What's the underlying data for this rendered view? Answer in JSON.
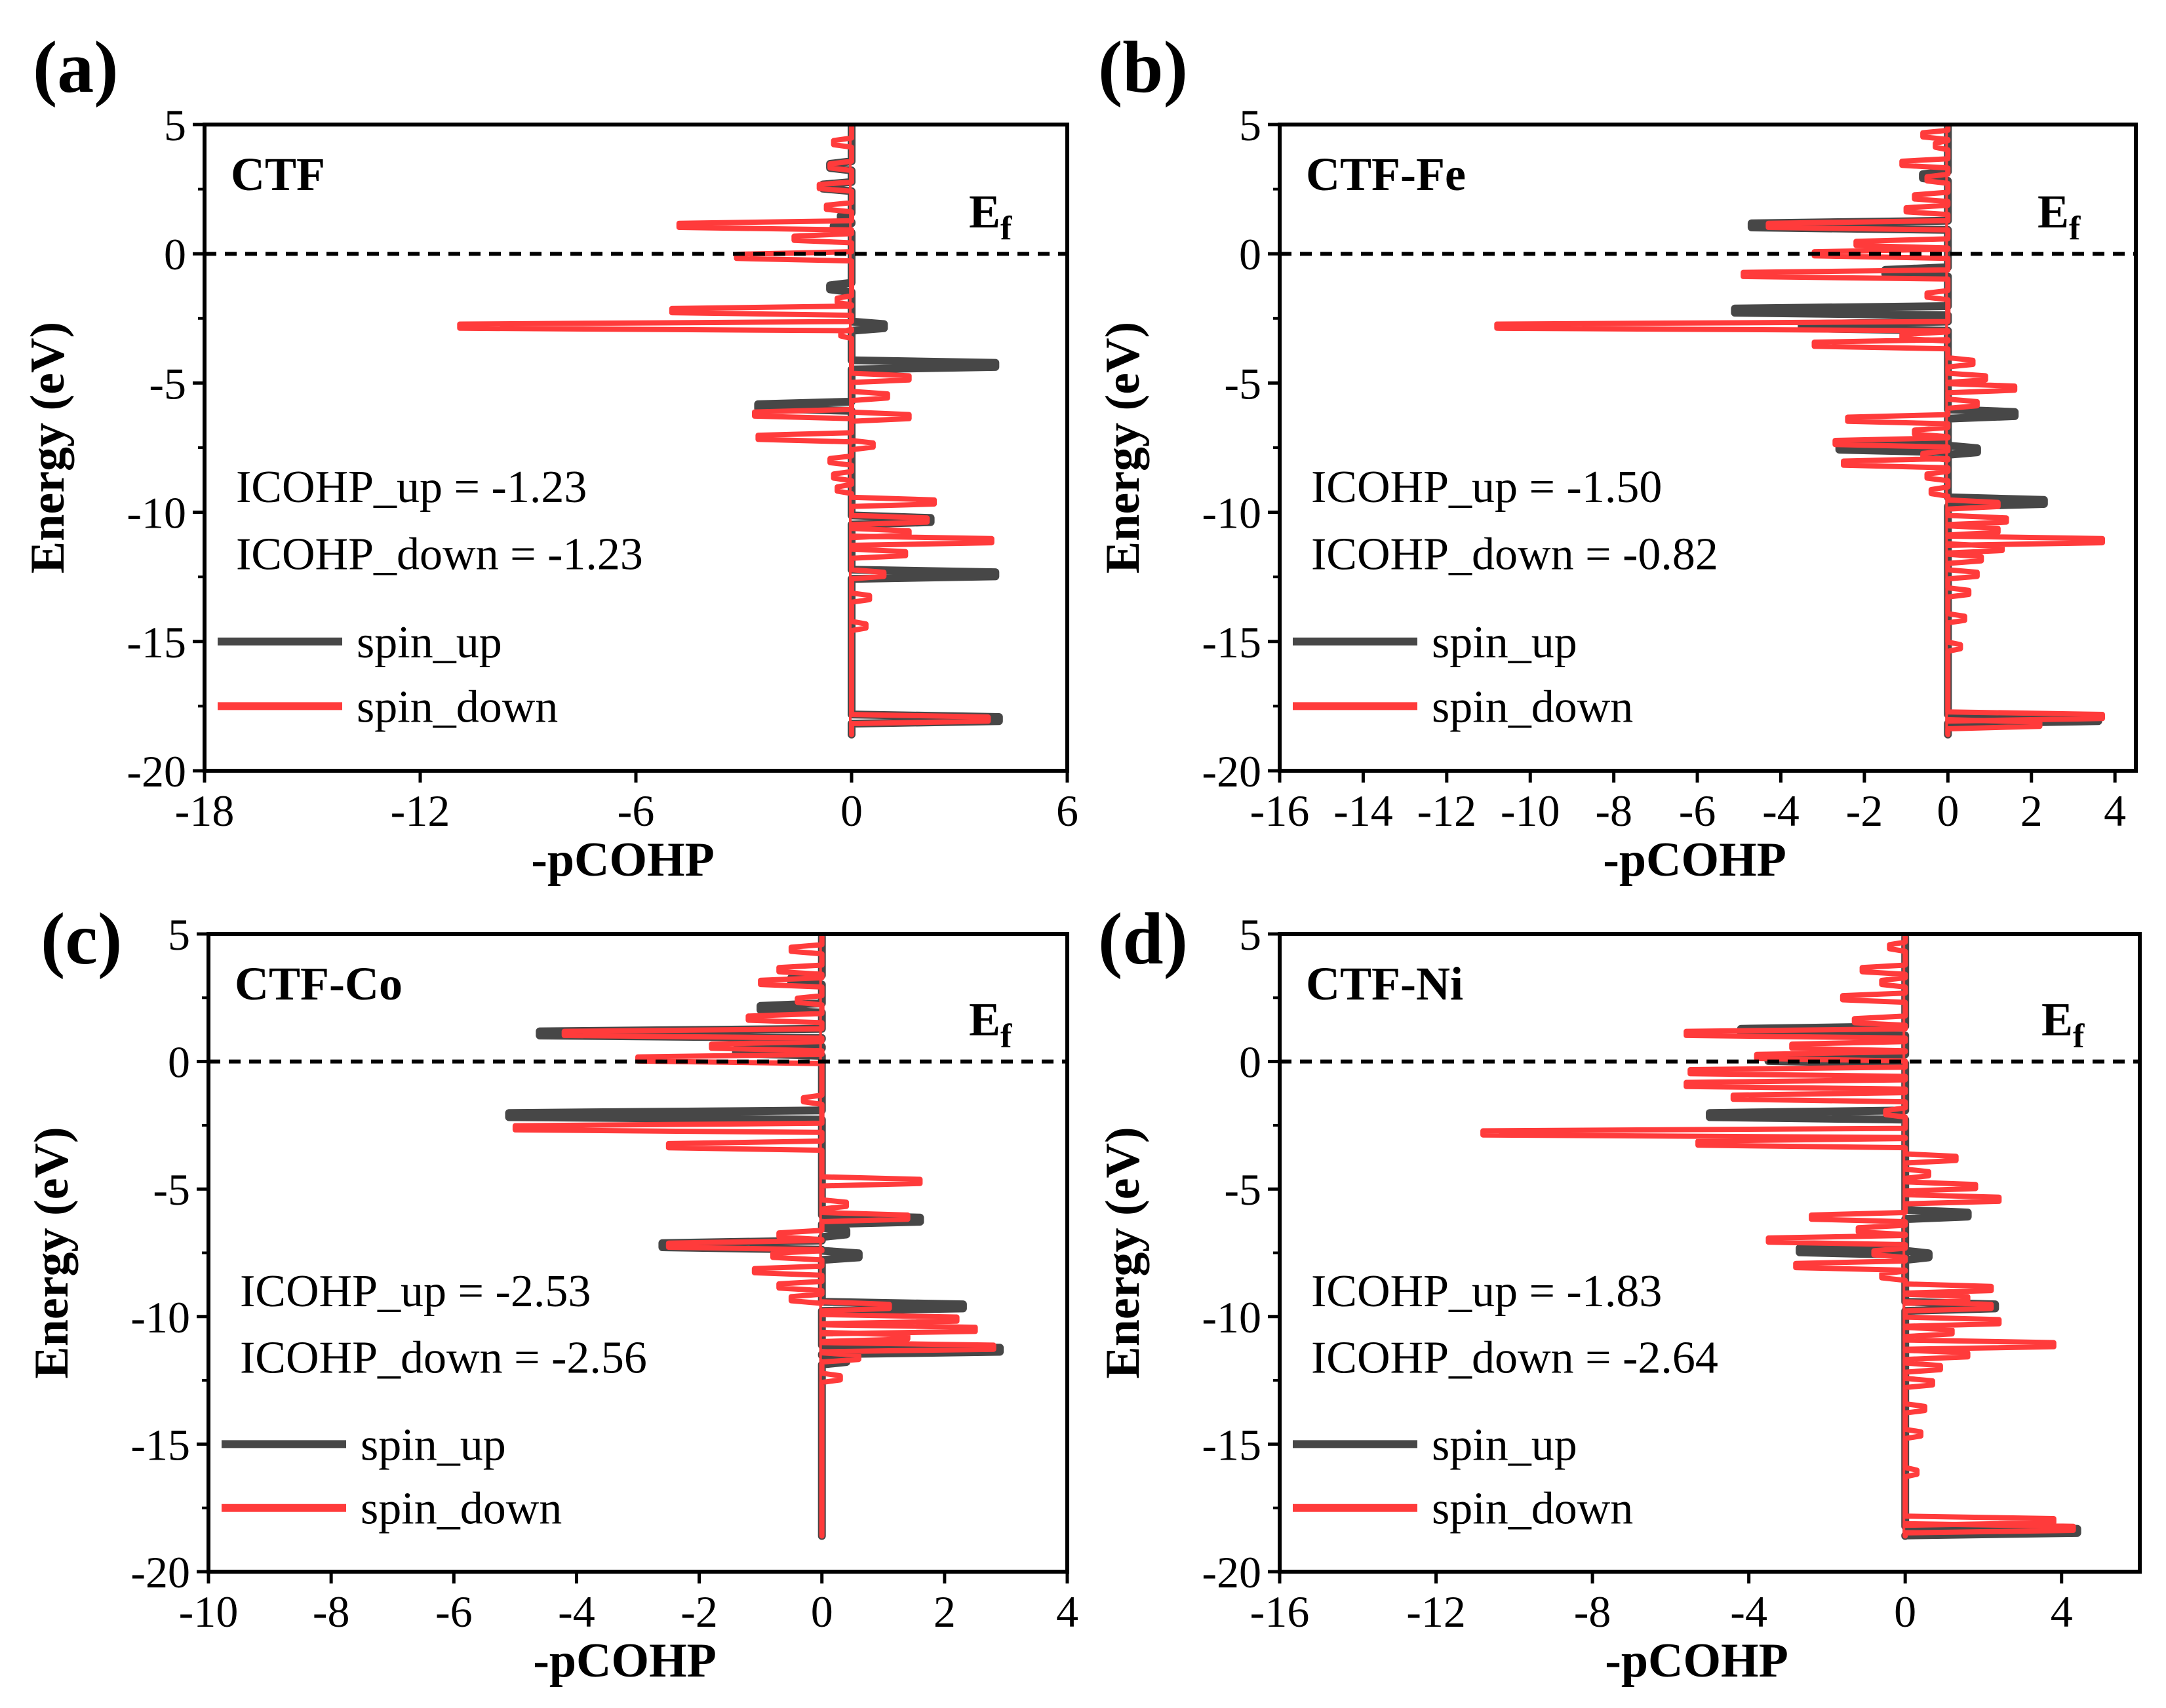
{
  "chart_data": [
    {
      "type": "line",
      "panel": "(a)",
      "title": "CTF",
      "xlabel": "-pCOHP",
      "ylabel": "Energy (eV)",
      "xlim": [
        -18,
        6
      ],
      "xticks": [
        -18,
        -12,
        -6,
        0,
        6
      ],
      "ylim": [
        -20,
        5
      ],
      "yticks": [
        5,
        0,
        -5,
        -10,
        -15,
        -20
      ],
      "fermi_label": "E",
      "fermi_sub": "f",
      "annotations": [
        "ICOHP_up = -1.23",
        "ICOHP_down = -1.23"
      ],
      "series": [
        {
          "name": "spin_up",
          "color": "#474747",
          "peaks": [
            [
              3.4,
              -0.6
            ],
            [
              2.6,
              -0.8
            ],
            [
              1.4,
              -0.3
            ],
            [
              1.0,
              -0.5
            ],
            [
              -1.3,
              -0.6
            ],
            [
              -2.8,
              0.9
            ],
            [
              -4.3,
              4.0
            ],
            [
              -5.9,
              -2.6
            ],
            [
              -10.3,
              2.2
            ],
            [
              -12.4,
              4.0
            ],
            [
              -18.0,
              4.1
            ]
          ]
        },
        {
          "name": "spin_down",
          "color": "#ff3b3b",
          "peaks": [
            [
              4.3,
              -0.5
            ],
            [
              3.4,
              -0.6
            ],
            [
              2.6,
              -0.9
            ],
            [
              1.8,
              -0.7
            ],
            [
              1.1,
              -4.8
            ],
            [
              0.6,
              -1.6
            ],
            [
              -0.1,
              -3.2
            ],
            [
              -1.8,
              -0.4
            ],
            [
              -2.2,
              -5.0
            ],
            [
              -2.8,
              -10.9
            ],
            [
              -3.1,
              -0.3
            ],
            [
              -4.8,
              1.6
            ],
            [
              -5.5,
              1.0
            ],
            [
              -6.2,
              -2.7
            ],
            [
              -6.3,
              1.6
            ],
            [
              -7.1,
              -2.6
            ],
            [
              -7.4,
              0.6
            ],
            [
              -8.0,
              -0.6
            ],
            [
              -8.6,
              -0.5
            ],
            [
              -9.1,
              -0.4
            ],
            [
              -9.6,
              2.3
            ],
            [
              -10.3,
              2.1
            ],
            [
              -10.8,
              1.6
            ],
            [
              -11.1,
              3.9
            ],
            [
              -11.6,
              1.5
            ],
            [
              -12.4,
              0.9
            ],
            [
              -13.3,
              0.5
            ],
            [
              -14.4,
              0.4
            ],
            [
              -18.0,
              3.8
            ]
          ]
        }
      ]
    },
    {
      "type": "line",
      "panel": "(b)",
      "title": "CTF-Fe",
      "xlabel": "-pCOHP",
      "ylabel": "Energy (eV)",
      "xlim": [
        -16,
        4.5
      ],
      "xticks": [
        -16,
        -14,
        -12,
        -10,
        -8,
        -6,
        -4,
        -2,
        0,
        2,
        4
      ],
      "ylim": [
        -20,
        5
      ],
      "yticks": [
        5,
        0,
        -5,
        -10,
        -15,
        -20
      ],
      "fermi_label": "E",
      "fermi_sub": "f",
      "annotations": [
        "ICOHP_up = -1.50",
        "ICOHP_down = -0.82"
      ],
      "series": [
        {
          "name": "spin_up",
          "color": "#474747",
          "peaks": [
            [
              3.0,
              -0.6
            ],
            [
              1.1,
              -4.7
            ],
            [
              -0.7,
              -1.5
            ],
            [
              -2.2,
              -5.1
            ],
            [
              -2.8,
              -3.5
            ],
            [
              -6.2,
              1.6
            ],
            [
              -7.5,
              -2.6
            ],
            [
              -7.6,
              0.7
            ],
            [
              -9.6,
              2.3
            ],
            [
              -18.0,
              3.6
            ]
          ]
        },
        {
          "name": "spin_down",
          "color": "#ff3b3b",
          "peaks": [
            [
              4.6,
              -0.6
            ],
            [
              4.2,
              -0.3
            ],
            [
              3.5,
              -1.1
            ],
            [
              2.9,
              -0.5
            ],
            [
              2.2,
              -0.8
            ],
            [
              1.7,
              -1.0
            ],
            [
              1.1,
              -4.3
            ],
            [
              0.4,
              -2.2
            ],
            [
              0.0,
              -3.2
            ],
            [
              -0.8,
              -4.9
            ],
            [
              -1.6,
              -0.5
            ],
            [
              -2.8,
              -10.8
            ],
            [
              -3.2,
              -1.1
            ],
            [
              -3.5,
              -3.2
            ],
            [
              -4.2,
              0.6
            ],
            [
              -4.8,
              0.9
            ],
            [
              -5.2,
              1.6
            ],
            [
              -5.8,
              0.7
            ],
            [
              -6.4,
              -2.4
            ],
            [
              -6.9,
              -0.8
            ],
            [
              -7.3,
              -2.7
            ],
            [
              -7.8,
              -0.6
            ],
            [
              -8.1,
              -2.5
            ],
            [
              -8.6,
              -0.5
            ],
            [
              -9.2,
              -0.4
            ],
            [
              -9.7,
              1.2
            ],
            [
              -10.3,
              1.4
            ],
            [
              -10.7,
              1.2
            ],
            [
              -11.1,
              3.7
            ],
            [
              -11.4,
              1.3
            ],
            [
              -11.8,
              0.8
            ],
            [
              -12.4,
              0.7
            ],
            [
              -13.1,
              0.5
            ],
            [
              -14.1,
              0.4
            ],
            [
              -15.2,
              0.3
            ],
            [
              -17.9,
              3.7
            ],
            [
              -18.2,
              2.2
            ]
          ]
        }
      ]
    },
    {
      "type": "line",
      "panel": "(c)",
      "title": "CTF-Co",
      "xlabel": "-pCOHP",
      "ylabel": "Energy (eV)",
      "xlim": [
        -10,
        4
      ],
      "xticks": [
        -10,
        -8,
        -6,
        -4,
        -2,
        0,
        2,
        4
      ],
      "ylim": [
        -20,
        5
      ],
      "yticks": [
        5,
        0,
        -5,
        -10,
        -15,
        -20
      ],
      "fermi_label": "E",
      "fermi_sub": "f",
      "annotations": [
        "ICOHP_up = -2.53",
        "ICOHP_down = -2.56"
      ],
      "series": [
        {
          "name": "spin_up",
          "color": "#474747",
          "peaks": [
            [
              3.2,
              -0.5
            ],
            [
              2.1,
              -1.0
            ],
            [
              1.1,
              -4.6
            ],
            [
              0.7,
              -1.2
            ],
            [
              0.4,
              -1.4
            ],
            [
              -2.1,
              -5.1
            ],
            [
              -6.2,
              1.6
            ],
            [
              -6.7,
              0.4
            ],
            [
              -7.2,
              -2.6
            ],
            [
              -7.6,
              0.6
            ],
            [
              -9.6,
              2.3
            ],
            [
              -11.3,
              2.9
            ],
            [
              -11.7,
              0.4
            ]
          ]
        },
        {
          "name": "spin_down",
          "color": "#ff3b3b",
          "peaks": [
            [
              4.4,
              -0.5
            ],
            [
              3.6,
              -0.7
            ],
            [
              3.1,
              -1.0
            ],
            [
              2.4,
              -0.4
            ],
            [
              1.7,
              -1.2
            ],
            [
              1.1,
              -4.2
            ],
            [
              0.6,
              -1.8
            ],
            [
              0.1,
              -3.0
            ],
            [
              -1.5,
              -0.3
            ],
            [
              -2.6,
              -5.0
            ],
            [
              -3.3,
              -2.5
            ],
            [
              -4.7,
              1.6
            ],
            [
              -5.6,
              0.4
            ],
            [
              -6.1,
              1.4
            ],
            [
              -6.8,
              -0.7
            ],
            [
              -7.2,
              -2.5
            ],
            [
              -7.6,
              -0.8
            ],
            [
              -8.2,
              -1.1
            ],
            [
              -8.8,
              -0.7
            ],
            [
              -9.3,
              -0.5
            ],
            [
              -9.6,
              1.1
            ],
            [
              -10.1,
              2.2
            ],
            [
              -10.5,
              2.5
            ],
            [
              -10.8,
              1.4
            ],
            [
              -11.2,
              2.8
            ],
            [
              -11.6,
              0.6
            ],
            [
              -12.4,
              0.3
            ]
          ]
        }
      ]
    },
    {
      "type": "line",
      "panel": "(d)",
      "title": "CTF-Ni",
      "xlabel": "-pCOHP",
      "ylabel": "Energy (eV)",
      "xlim": [
        -16,
        6
      ],
      "xticks": [
        -16,
        -12,
        -8,
        -4,
        0,
        4
      ],
      "ylim": [
        -20,
        5
      ],
      "yticks": [
        5,
        0,
        -5,
        -10,
        -15,
        -20
      ],
      "fermi_label": "E",
      "fermi_sub": "f",
      "annotations": [
        "ICOHP_up = -1.83",
        "ICOHP_down = -2.64"
      ],
      "series": [
        {
          "name": "spin_up",
          "color": "#474747",
          "peaks": [
            [
              1.2,
              -4.2
            ],
            [
              0.1,
              -3.5
            ],
            [
              -2.1,
              -5.0
            ],
            [
              -6.0,
              1.6
            ],
            [
              -7.4,
              -2.7
            ],
            [
              -7.6,
              0.6
            ],
            [
              -9.6,
              2.3
            ],
            [
              -18.4,
              4.4
            ]
          ]
        },
        {
          "name": "spin_down",
          "color": "#ff3b3b",
          "peaks": [
            [
              4.5,
              -0.4
            ],
            [
              3.6,
              -1.1
            ],
            [
              3.1,
              -0.6
            ],
            [
              2.5,
              -1.6
            ],
            [
              1.6,
              -1.3
            ],
            [
              1.1,
              -5.6
            ],
            [
              0.6,
              -2.9
            ],
            [
              0.2,
              -3.8
            ],
            [
              -0.4,
              -5.5
            ],
            [
              -0.9,
              -5.6
            ],
            [
              -1.4,
              -4.4
            ],
            [
              -2.0,
              -0.5
            ],
            [
              -2.8,
              -10.8
            ],
            [
              -3.2,
              -5.3
            ],
            [
              -3.8,
              1.3
            ],
            [
              -4.4,
              0.6
            ],
            [
              -4.9,
              1.8
            ],
            [
              -5.4,
              2.4
            ],
            [
              -6.1,
              -2.4
            ],
            [
              -6.6,
              -1.2
            ],
            [
              -7.0,
              -3.5
            ],
            [
              -7.5,
              -0.8
            ],
            [
              -8.0,
              -2.8
            ],
            [
              -8.4,
              -0.6
            ],
            [
              -8.9,
              2.2
            ],
            [
              -9.3,
              1.6
            ],
            [
              -9.6,
              2.2
            ],
            [
              -10.2,
              2.4
            ],
            [
              -10.6,
              1.2
            ],
            [
              -11.1,
              3.8
            ],
            [
              -11.5,
              1.6
            ],
            [
              -12.0,
              0.9
            ],
            [
              -12.6,
              0.7
            ],
            [
              -13.6,
              0.5
            ],
            [
              -14.6,
              0.4
            ],
            [
              -16.1,
              0.3
            ],
            [
              -18.0,
              3.8
            ],
            [
              -18.3,
              4.3
            ]
          ]
        }
      ]
    }
  ]
}
